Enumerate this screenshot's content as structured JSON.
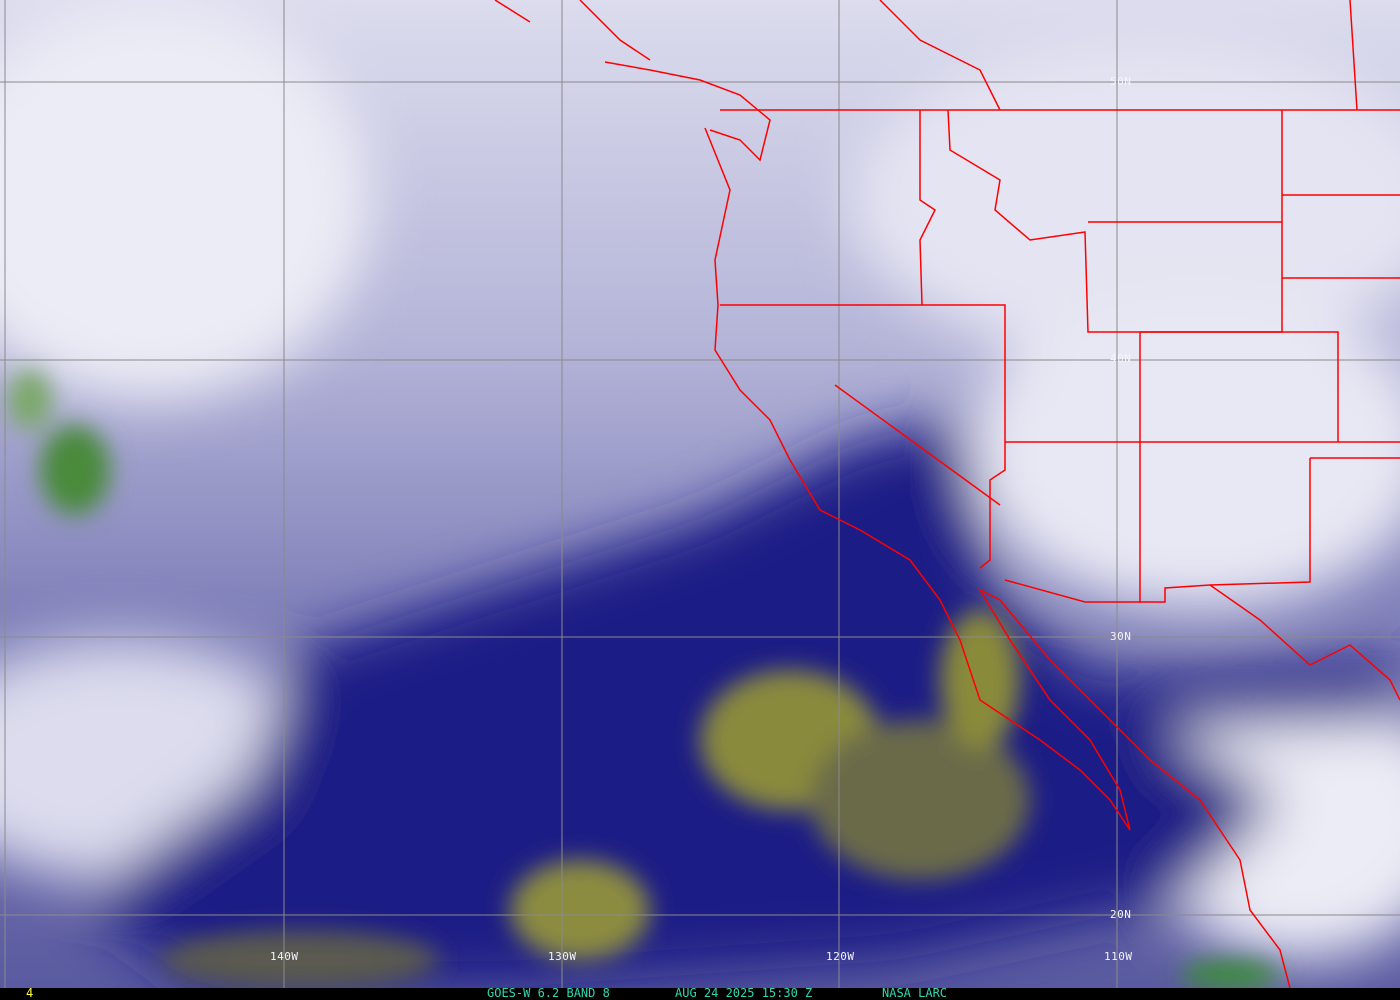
{
  "image": {
    "type": "satellite water vapor imagery",
    "overlay_color": "#ff0000",
    "grid_color": "#8a8a8a"
  },
  "grid_labels": {
    "lat": [
      "50N",
      "40N",
      "30N",
      "20N"
    ],
    "lon": [
      "140W",
      "130W",
      "120W",
      "110W"
    ]
  },
  "caption": {
    "frame": "4",
    "satellite": "GOES-W 6.2 BAND 8",
    "datetime": "AUG 24 2025 15:30 Z",
    "source": "NASA LARC"
  },
  "colors": {
    "moist": "#e8e8f4",
    "mid": "#9c9ccc",
    "dry": "#1a1a80",
    "very_dry": "#8a8a3a",
    "caption_text": "#2fd8b0",
    "frame_text": "#ffff40"
  }
}
